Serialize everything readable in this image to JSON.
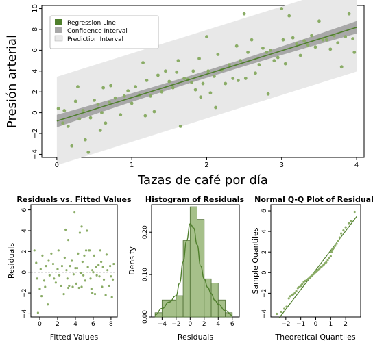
{
  "colors": {
    "point": "#8aac66",
    "line": "#4f7f2c",
    "ci_band": "#a8a8a8",
    "pi_band": "#e8e8e8",
    "hist_bar": "#a6c08a",
    "hist_edge": "#4e6e32"
  },
  "chart_data": [
    {
      "id": "main",
      "type": "scatter",
      "xlabel": "Tazas de café por día",
      "ylabel": "Presión arterial",
      "xlim": [
        -0.2,
        4.1
      ],
      "ylim": [
        -4.3,
        10.3
      ],
      "xticks": [
        0,
        1,
        2,
        3,
        4
      ],
      "yticks": [
        -4,
        -2,
        0,
        2,
        4,
        6,
        8,
        10
      ],
      "grid": false,
      "legend_position": "top-left",
      "legend": [
        "Regression Line",
        "Confidence Interval",
        "Prediction Interval"
      ],
      "regression": {
        "intercept": -0.8,
        "slope": 2.25
      },
      "confidence_interval": {
        "half_width_at_ends": 0.6,
        "half_width_at_center": 0.35
      },
      "prediction_interval": {
        "half_width": 4.25
      },
      "points": [
        [
          0.02,
          0.4
        ],
        [
          0.08,
          -1.0
        ],
        [
          0.1,
          0.2
        ],
        [
          0.15,
          -1.3
        ],
        [
          0.2,
          -3.2
        ],
        [
          0.25,
          1.1
        ],
        [
          0.28,
          2.5
        ],
        [
          0.3,
          -0.6
        ],
        [
          0.35,
          0.2
        ],
        [
          0.38,
          -2.6
        ],
        [
          0.42,
          -3.8
        ],
        [
          0.45,
          -0.5
        ],
        [
          0.5,
          1.2
        ],
        [
          0.55,
          0.8
        ],
        [
          0.58,
          -1.7
        ],
        [
          0.6,
          0.0
        ],
        [
          0.62,
          2.4
        ],
        [
          0.65,
          -1.0
        ],
        [
          0.7,
          1.0
        ],
        [
          0.72,
          2.6
        ],
        [
          0.78,
          1.4
        ],
        [
          0.85,
          -0.2
        ],
        [
          0.9,
          1.6
        ],
        [
          0.95,
          2.1
        ],
        [
          1.0,
          0.9
        ],
        [
          1.05,
          2.5
        ],
        [
          1.1,
          1.7
        ],
        [
          1.15,
          4.8
        ],
        [
          1.18,
          -0.3
        ],
        [
          1.2,
          3.1
        ],
        [
          1.25,
          1.6
        ],
        [
          1.3,
          0.1
        ],
        [
          1.35,
          3.6
        ],
        [
          1.4,
          2.0
        ],
        [
          1.45,
          4.0
        ],
        [
          1.5,
          3.0
        ],
        [
          1.55,
          2.4
        ],
        [
          1.6,
          3.9
        ],
        [
          1.62,
          5.0
        ],
        [
          1.65,
          -1.3
        ],
        [
          1.7,
          3.3
        ],
        [
          1.75,
          3.2
        ],
        [
          1.8,
          2.9
        ],
        [
          1.82,
          4.0
        ],
        [
          1.85,
          2.2
        ],
        [
          1.9,
          5.2
        ],
        [
          1.92,
          1.5
        ],
        [
          1.95,
          2.8
        ],
        [
          2.0,
          7.3
        ],
        [
          2.02,
          4.0
        ],
        [
          2.05,
          1.9
        ],
        [
          2.1,
          3.5
        ],
        [
          2.12,
          0.5
        ],
        [
          2.15,
          5.6
        ],
        [
          2.2,
          4.1
        ],
        [
          2.25,
          2.8
        ],
        [
          2.3,
          4.6
        ],
        [
          2.35,
          3.3
        ],
        [
          2.4,
          6.4
        ],
        [
          2.42,
          3.1
        ],
        [
          2.45,
          5.0
        ],
        [
          2.5,
          9.5
        ],
        [
          2.52,
          3.3
        ],
        [
          2.55,
          5.8
        ],
        [
          2.6,
          7.0
        ],
        [
          2.65,
          3.8
        ],
        [
          2.7,
          4.6
        ],
        [
          2.75,
          6.2
        ],
        [
          2.8,
          5.8
        ],
        [
          2.82,
          1.8
        ],
        [
          2.85,
          6.0
        ],
        [
          2.9,
          5.0
        ],
        [
          2.95,
          5.3
        ],
        [
          3.0,
          10.0
        ],
        [
          3.02,
          7.0
        ],
        [
          3.05,
          4.7
        ],
        [
          3.1,
          9.3
        ],
        [
          3.15,
          7.2
        ],
        [
          3.2,
          6.6
        ],
        [
          3.25,
          5.5
        ],
        [
          3.3,
          6.9
        ],
        [
          3.35,
          6.5
        ],
        [
          3.4,
          7.4
        ],
        [
          3.45,
          6.3
        ],
        [
          3.5,
          8.8
        ],
        [
          3.55,
          7.0
        ],
        [
          3.6,
          7.0
        ],
        [
          3.65,
          6.1
        ],
        [
          3.7,
          7.4
        ],
        [
          3.75,
          6.7
        ],
        [
          3.8,
          4.4
        ],
        [
          3.85,
          7.3
        ],
        [
          3.9,
          9.5
        ],
        [
          3.95,
          7.1
        ],
        [
          3.97,
          5.8
        ]
      ]
    },
    {
      "id": "resid",
      "type": "scatter",
      "title": "Residuals vs. Fitted Values",
      "xlabel": "Fitted Values",
      "ylabel": "Residuals",
      "xlim": [
        -1.0,
        8.7
      ],
      "ylim": [
        -4.3,
        6.5
      ],
      "xticks": [
        0,
        2,
        4,
        6,
        8
      ],
      "yticks": [
        -4,
        -2,
        0,
        2,
        4,
        6
      ],
      "reference_line": 0,
      "points": [
        [
          -0.6,
          2.1
        ],
        [
          -0.4,
          0.9
        ],
        [
          -0.3,
          -0.6
        ],
        [
          -0.2,
          -3.9
        ],
        [
          0.0,
          -1.6
        ],
        [
          0.1,
          0.3
        ],
        [
          0.2,
          -2.3
        ],
        [
          0.3,
          1.6
        ],
        [
          0.5,
          -0.8
        ],
        [
          0.6,
          -1.4
        ],
        [
          0.7,
          0.6
        ],
        [
          0.9,
          -3.1
        ],
        [
          1.0,
          1.1
        ],
        [
          1.1,
          -0.3
        ],
        [
          1.3,
          1.8
        ],
        [
          1.5,
          0.8
        ],
        [
          1.6,
          -0.6
        ],
        [
          1.8,
          -1.0
        ],
        [
          2.0,
          0.3
        ],
        [
          2.1,
          2.1
        ],
        [
          2.2,
          -0.3
        ],
        [
          2.4,
          -1.3
        ],
        [
          2.5,
          0.6
        ],
        [
          2.7,
          -2.1
        ],
        [
          2.8,
          1.4
        ],
        [
          3.0,
          0.2
        ],
        [
          3.1,
          -0.6
        ],
        [
          3.2,
          3.1
        ],
        [
          3.3,
          -1.3
        ],
        [
          3.4,
          0.6
        ],
        [
          3.6,
          1.1
        ],
        [
          3.7,
          -1.4
        ],
        [
          3.8,
          -0.2
        ],
        [
          3.9,
          5.8
        ],
        [
          4.0,
          0.4
        ],
        [
          4.1,
          -1.1
        ],
        [
          4.2,
          0.4
        ],
        [
          4.3,
          1.8
        ],
        [
          4.4,
          -1.5
        ],
        [
          4.5,
          3.8
        ],
        [
          4.6,
          -0.1
        ],
        [
          4.7,
          -1.4
        ],
        [
          4.8,
          1.0
        ],
        [
          4.9,
          -0.3
        ],
        [
          5.0,
          1.6
        ],
        [
          5.1,
          -0.8
        ],
        [
          5.2,
          2.1
        ],
        [
          5.3,
          4.0
        ],
        [
          5.4,
          0.5
        ],
        [
          5.5,
          2.1
        ],
        [
          5.6,
          2.1
        ],
        [
          5.7,
          -0.6
        ],
        [
          5.8,
          -1.6
        ],
        [
          5.9,
          0.2
        ],
        [
          6.0,
          0.0
        ],
        [
          6.1,
          1.6
        ],
        [
          6.2,
          -2.1
        ],
        [
          6.3,
          0.5
        ],
        [
          6.4,
          -0.3
        ],
        [
          6.6,
          0.7
        ],
        [
          6.7,
          -0.4
        ],
        [
          6.9,
          1.0
        ],
        [
          7.0,
          -1.4
        ],
        [
          7.1,
          0.5
        ],
        [
          7.2,
          -0.7
        ],
        [
          7.4,
          -2.2
        ],
        [
          7.5,
          1.7
        ],
        [
          7.6,
          0.2
        ],
        [
          7.8,
          -1.3
        ],
        [
          7.9,
          0.6
        ],
        [
          8.0,
          -0.4
        ],
        [
          8.1,
          -2.4
        ],
        [
          8.2,
          -0.7
        ],
        [
          8.3,
          0.8
        ],
        [
          6.8,
          2.1
        ],
        [
          5.9,
          -2.0
        ],
        [
          3.2,
          -1.5
        ],
        [
          2.9,
          4.1
        ],
        [
          4.7,
          4.4
        ]
      ]
    },
    {
      "id": "hist",
      "type": "bar",
      "title": "Histogram of Residuals",
      "xlabel": "Residuals",
      "ylabel": "Density",
      "xlim": [
        -5.5,
        7.0
      ],
      "ylim": [
        0,
        0.265
      ],
      "xticks": [
        -4,
        -2,
        0,
        2,
        4,
        6
      ],
      "yticks": [
        0.0,
        0.1,
        0.2
      ],
      "ytick_labels": [
        "0.00",
        "0.10",
        "0.20"
      ],
      "bin_edges": [
        -5,
        -4,
        -3,
        -2,
        -1,
        0,
        1,
        2,
        3,
        4,
        5,
        6
      ],
      "values": [
        0.01,
        0.04,
        0.04,
        0.05,
        0.18,
        0.26,
        0.23,
        0.09,
        0.08,
        0.04,
        0.01
      ],
      "density_curve": [
        [
          -5.0,
          0.005
        ],
        [
          -4.0,
          0.02
        ],
        [
          -3.0,
          0.035
        ],
        [
          -2.0,
          0.05
        ],
        [
          -1.5,
          0.08
        ],
        [
          -1.0,
          0.13
        ],
        [
          -0.5,
          0.18
        ],
        [
          0.0,
          0.22
        ],
        [
          0.5,
          0.21
        ],
        [
          1.0,
          0.17
        ],
        [
          1.5,
          0.12
        ],
        [
          2.0,
          0.09
        ],
        [
          2.5,
          0.07
        ],
        [
          3.0,
          0.055
        ],
        [
          3.5,
          0.04
        ],
        [
          4.0,
          0.03
        ],
        [
          5.0,
          0.015
        ],
        [
          6.0,
          0.004
        ]
      ]
    },
    {
      "id": "qq",
      "type": "scatter",
      "title": "Normal Q-Q Plot of Residual",
      "xlabel": "Theoretical Quantiles",
      "ylabel": "Sample Quantiles",
      "xlim": [
        -3.0,
        3.0
      ],
      "ylim": [
        -4.3,
        6.6
      ],
      "xticks": [
        -2,
        -1,
        0,
        1,
        2
      ],
      "yticks": [
        -4,
        -2,
        0,
        2,
        4,
        6
      ],
      "reference_line": {
        "intercept": 0.25,
        "slope": 1.9
      },
      "points": [
        [
          -2.6,
          -4.0
        ],
        [
          -2.3,
          -3.8
        ],
        [
          -2.1,
          -3.5
        ],
        [
          -1.95,
          -3.3
        ],
        [
          -1.8,
          -2.5
        ],
        [
          -1.7,
          -2.3
        ],
        [
          -1.6,
          -2.2
        ],
        [
          -1.5,
          -2.1
        ],
        [
          -1.4,
          -2.0
        ],
        [
          -1.3,
          -1.8
        ],
        [
          -1.2,
          -1.5
        ],
        [
          -1.1,
          -1.4
        ],
        [
          -1.0,
          -1.3
        ],
        [
          -0.95,
          -1.2
        ],
        [
          -0.9,
          -1.1
        ],
        [
          -0.8,
          -0.9
        ],
        [
          -0.7,
          -0.8
        ],
        [
          -0.6,
          -0.7
        ],
        [
          -0.5,
          -0.6
        ],
        [
          -0.45,
          -0.55
        ],
        [
          -0.4,
          -0.5
        ],
        [
          -0.35,
          -0.4
        ],
        [
          -0.3,
          -0.35
        ],
        [
          -0.25,
          -0.3
        ],
        [
          -0.2,
          -0.2
        ],
        [
          -0.15,
          -0.15
        ],
        [
          -0.1,
          -0.05
        ],
        [
          -0.05,
          0.0
        ],
        [
          0.0,
          0.05
        ],
        [
          0.05,
          0.1
        ],
        [
          0.1,
          0.2
        ],
        [
          0.15,
          0.25
        ],
        [
          0.2,
          0.3
        ],
        [
          0.25,
          0.4
        ],
        [
          0.3,
          0.5
        ],
        [
          0.35,
          0.55
        ],
        [
          0.4,
          0.6
        ],
        [
          0.5,
          0.7
        ],
        [
          0.55,
          0.8
        ],
        [
          0.6,
          0.9
        ],
        [
          0.7,
          1.0
        ],
        [
          0.8,
          1.2
        ],
        [
          0.9,
          1.4
        ],
        [
          1.0,
          1.6
        ],
        [
          1.05,
          2.0
        ],
        [
          1.1,
          2.2
        ],
        [
          1.15,
          2.3
        ],
        [
          1.2,
          2.4
        ],
        [
          1.3,
          2.6
        ],
        [
          1.4,
          2.8
        ],
        [
          1.5,
          3.1
        ],
        [
          1.6,
          3.4
        ],
        [
          1.7,
          3.8
        ],
        [
          1.85,
          4.1
        ],
        [
          2.0,
          4.4
        ],
        [
          2.2,
          4.8
        ],
        [
          2.35,
          5.0
        ],
        [
          2.6,
          5.9
        ]
      ]
    }
  ]
}
